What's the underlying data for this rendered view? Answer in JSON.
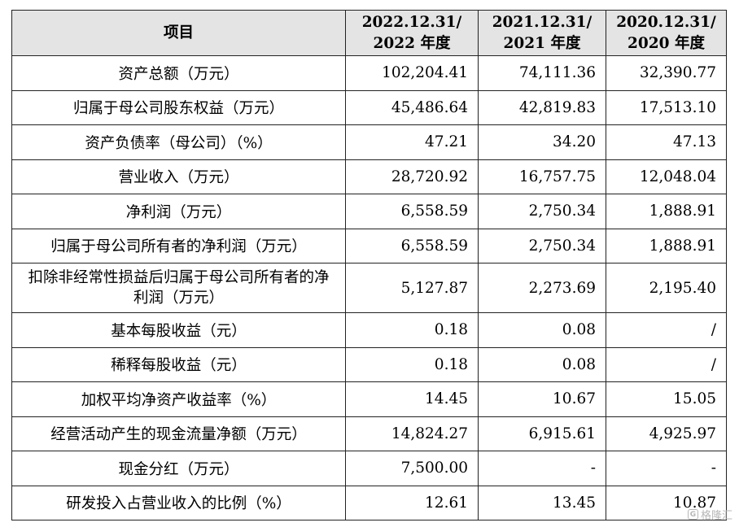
{
  "table": {
    "header": {
      "item": "项目",
      "col1": [
        "2022.12.31/",
        "2022 年度"
      ],
      "col2": [
        "2021.12.31/",
        "2021 年度"
      ],
      "col3": [
        "2020.12.31/",
        "2020 年度"
      ]
    },
    "rows": [
      {
        "label": "资产总额（万元）",
        "v2022": "102,204.41",
        "v2021": "74,111.36",
        "v2020": "32,390.77"
      },
      {
        "label": "归属于母公司股东权益（万元）",
        "v2022": "45,486.64",
        "v2021": "42,819.83",
        "v2020": "17,513.10"
      },
      {
        "label": "资产负债率（母公司）（%）",
        "v2022": "47.21",
        "v2021": "34.20",
        "v2020": "47.13"
      },
      {
        "label": "营业收入（万元）",
        "v2022": "28,720.92",
        "v2021": "16,757.75",
        "v2020": "12,048.04"
      },
      {
        "label": "净利润（万元）",
        "v2022": "6,558.59",
        "v2021": "2,750.34",
        "v2020": "1,888.91"
      },
      {
        "label": "归属于母公司所有者的净利润（万元）",
        "v2022": "6,558.59",
        "v2021": "2,750.34",
        "v2020": "1,888.91"
      },
      {
        "label": "扣除非经常性损益后归属于母公司所有者的净利润（万元）",
        "v2022": "5,127.87",
        "v2021": "2,273.69",
        "v2020": "2,195.40"
      },
      {
        "label": "基本每股收益（元）",
        "v2022": "0.18",
        "v2021": "0.08",
        "v2020": "/"
      },
      {
        "label": "稀释每股收益（元）",
        "v2022": "0.18",
        "v2021": "0.08",
        "v2020": "/"
      },
      {
        "label": "加权平均净资产收益率（%）",
        "v2022": "14.45",
        "v2021": "10.67",
        "v2020": "15.05"
      },
      {
        "label": "经营活动产生的现金流量净额（万元）",
        "v2022": "14,824.27",
        "v2021": "6,915.61",
        "v2020": "4,925.97"
      },
      {
        "label": "现金分红（万元）",
        "v2022": "7,500.00",
        "v2021": "-",
        "v2020": "-"
      },
      {
        "label": "研发投入占营业收入的比例（%）",
        "v2022": "12.61",
        "v2021": "13.45",
        "v2020": "10.87"
      }
    ]
  },
  "watermark": {
    "text": "格隆汇",
    "icon": "g-logo-icon",
    "color": "#b7b7b7"
  },
  "colors": {
    "header_bg": "#e4e4e4",
    "border": "#222222",
    "text": "#000000"
  }
}
